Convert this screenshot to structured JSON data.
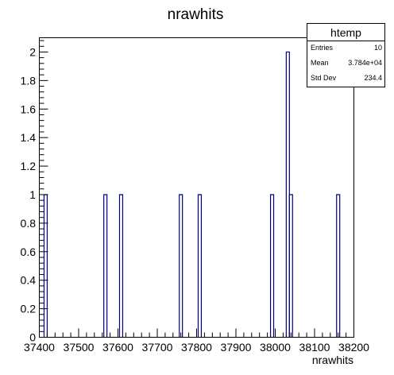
{
  "chart_data": {
    "type": "bar",
    "title": "nrawhits",
    "xlabel": "nrawhits",
    "ylabel": "",
    "xlim": [
      37400,
      38200
    ],
    "ylim": [
      0,
      2.1
    ],
    "bin_width": 8,
    "grid": false,
    "x_ticks": [
      "37400",
      "37500",
      "37600",
      "37700",
      "37800",
      "37900",
      "38000",
      "38100",
      "38200"
    ],
    "y_ticks": [
      "0",
      "0.2",
      "0.4",
      "0.6",
      "0.8",
      "1",
      "1.2",
      "1.4",
      "1.6",
      "1.8",
      "2"
    ],
    "bins": [
      {
        "x": 37416,
        "value": 1
      },
      {
        "x": 37568,
        "value": 1
      },
      {
        "x": 37608,
        "value": 1
      },
      {
        "x": 37760,
        "value": 1
      },
      {
        "x": 37808,
        "value": 1
      },
      {
        "x": 37992,
        "value": 1
      },
      {
        "x": 38032,
        "value": 2
      },
      {
        "x": 38040,
        "value": 1
      },
      {
        "x": 38160,
        "value": 1
      }
    ],
    "line_color": "#000080",
    "stats_box": {
      "name": "htemp",
      "rows": [
        {
          "label": "Entries",
          "value": "10"
        },
        {
          "label": "Mean",
          "value": "3.784e+04"
        },
        {
          "label": "Std Dev",
          "value": "234.4"
        }
      ],
      "placement": "top-right"
    }
  }
}
